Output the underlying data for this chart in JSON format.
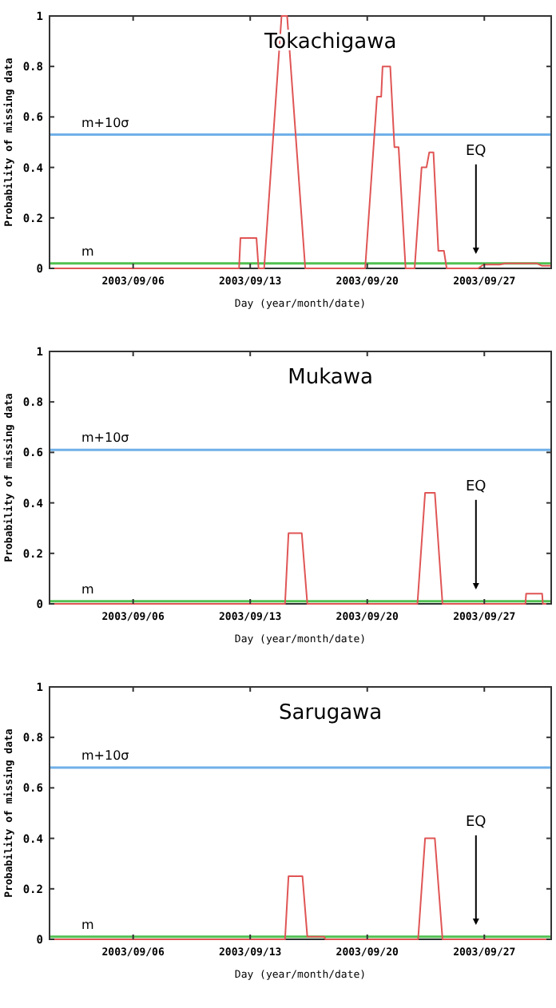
{
  "chart_data": [
    {
      "type": "line",
      "title": "Tokachigawa",
      "xlabel": "Day (year/month/date)",
      "ylabel": "Probability of missing data",
      "xlim": [
        "2003-09-01",
        "2003-10-01"
      ],
      "xticks": [
        {
          "value": "2003-09-06",
          "label": "2003/09/06"
        },
        {
          "value": "2003-09-13",
          "label": "2003/09/13"
        },
        {
          "value": "2003-09-20",
          "label": "2003/09/20"
        },
        {
          "value": "2003-09-27",
          "label": "2003/09/27"
        }
      ],
      "ylim": [
        0,
        1
      ],
      "yticks": [
        0,
        0.2,
        0.4,
        0.6,
        0.8,
        1
      ],
      "x": [
        "2003-09-01T00:00",
        "2003-09-12T08:00",
        "2003-09-12T10:00",
        "2003-09-13T09:00",
        "2003-09-13T12:00",
        "2003-09-13T20:00",
        "2003-09-14T21:00",
        "2003-09-15T05:00",
        "2003-09-16T07:00",
        "2003-09-19T21:00",
        "2003-09-20T14:00",
        "2003-09-20T20:00",
        "2003-09-20T22:00",
        "2003-09-21T09:00",
        "2003-09-21T15:00",
        "2003-09-21T21:00",
        "2003-09-22T07:00",
        "2003-09-22T20:00",
        "2003-09-23T06:00",
        "2003-09-23T13:00",
        "2003-09-23T17:00",
        "2003-09-23T23:00",
        "2003-09-24T06:00",
        "2003-09-24T14:00",
        "2003-09-24T18:00",
        "2003-09-26T15:00",
        "2003-09-26T23:00",
        "2003-09-27T22:00",
        "2003-09-28T06:00",
        "2003-09-30T03:00",
        "2003-09-30T11:00",
        "2003-09-30T23:00"
      ],
      "series": [
        {
          "color": "#e05555",
          "values": [
            0,
            0,
            0.12,
            0.12,
            0,
            0,
            1,
            1,
            0,
            0,
            0.68,
            0.68,
            0.8,
            0.8,
            0.48,
            0.48,
            0,
            0,
            0.4,
            0.4,
            0.46,
            0.46,
            0.07,
            0.07,
            0,
            0,
            0.015,
            0.015,
            0.02,
            0.02,
            0.01,
            0.01
          ]
        }
      ],
      "ref_lines": [
        {
          "axis": "y",
          "value": 0.53,
          "label": "m+10σ",
          "color": "#70b0e8"
        },
        {
          "axis": "y",
          "value": 0.02,
          "label": "m",
          "color": "#50c050"
        }
      ],
      "annotations": [
        "EQ"
      ]
    },
    {
      "type": "line",
      "title": "Mukawa",
      "xlabel": "Day (year/month/date)",
      "ylabel": "Probability of missing data",
      "xlim": [
        "2003-09-01",
        "2003-10-01"
      ],
      "xticks": [
        {
          "value": "2003-09-06",
          "label": "2003/09/06"
        },
        {
          "value": "2003-09-13",
          "label": "2003/09/13"
        },
        {
          "value": "2003-09-20",
          "label": "2003/09/20"
        },
        {
          "value": "2003-09-27",
          "label": "2003/09/27"
        }
      ],
      "ylim": [
        0,
        1
      ],
      "yticks": [
        0,
        0.2,
        0.4,
        0.6,
        0.8,
        1
      ],
      "x": [
        "2003-09-01T00:00",
        "2003-09-15T02:00",
        "2003-09-15T07:00",
        "2003-09-16T02:00",
        "2003-09-16T10:00",
        "2003-09-23T00:00",
        "2003-09-23T11:00",
        "2003-09-24T01:00",
        "2003-09-24T12:00",
        "2003-09-29T11:00",
        "2003-09-29T12:00",
        "2003-09-30T11:00",
        "2003-09-30T12:00",
        "2003-10-01T00:00"
      ],
      "series": [
        {
          "color": "#e05555",
          "values": [
            0,
            0,
            0.28,
            0.28,
            0,
            0,
            0.44,
            0.44,
            0,
            0,
            0.04,
            0.04,
            0,
            0
          ]
        }
      ],
      "ref_lines": [
        {
          "axis": "y",
          "value": 0.61,
          "label": "m+10σ",
          "color": "#70b0e8"
        },
        {
          "axis": "y",
          "value": 0.01,
          "label": "m",
          "color": "#50c050"
        }
      ],
      "annotations": [
        "EQ"
      ]
    },
    {
      "type": "line",
      "title": "Sarugawa",
      "xlabel": "Day (year/month/date)",
      "ylabel": "Probability of missing data",
      "xlim": [
        "2003-09-01",
        "2003-10-01"
      ],
      "xticks": [
        {
          "value": "2003-09-06",
          "label": "2003/09/06"
        },
        {
          "value": "2003-09-13",
          "label": "2003/09/13"
        },
        {
          "value": "2003-09-20",
          "label": "2003/09/20"
        },
        {
          "value": "2003-09-27",
          "label": "2003/09/27"
        }
      ],
      "ylim": [
        0,
        1
      ],
      "yticks": [
        0,
        0.2,
        0.4,
        0.6,
        0.8,
        1
      ],
      "x": [
        "2003-09-01T00:00",
        "2003-09-15T02:00",
        "2003-09-15T07:00",
        "2003-09-16T03:00",
        "2003-09-16T10:00",
        "2003-09-17T10:00",
        "2003-09-17T12:00",
        "2003-09-23T01:00",
        "2003-09-23T11:00",
        "2003-09-24T01:00",
        "2003-09-24T12:00",
        "2003-10-01T00:00"
      ],
      "series": [
        {
          "color": "#e05555",
          "values": [
            0,
            0,
            0.25,
            0.25,
            0.01,
            0.01,
            0,
            0,
            0.4,
            0.4,
            0,
            0
          ]
        }
      ],
      "ref_lines": [
        {
          "axis": "y",
          "value": 0.68,
          "label": "m+10σ",
          "color": "#70b0e8"
        },
        {
          "axis": "y",
          "value": 0.01,
          "label": "m",
          "color": "#50c050"
        }
      ],
      "annotations": [
        "EQ"
      ]
    }
  ]
}
